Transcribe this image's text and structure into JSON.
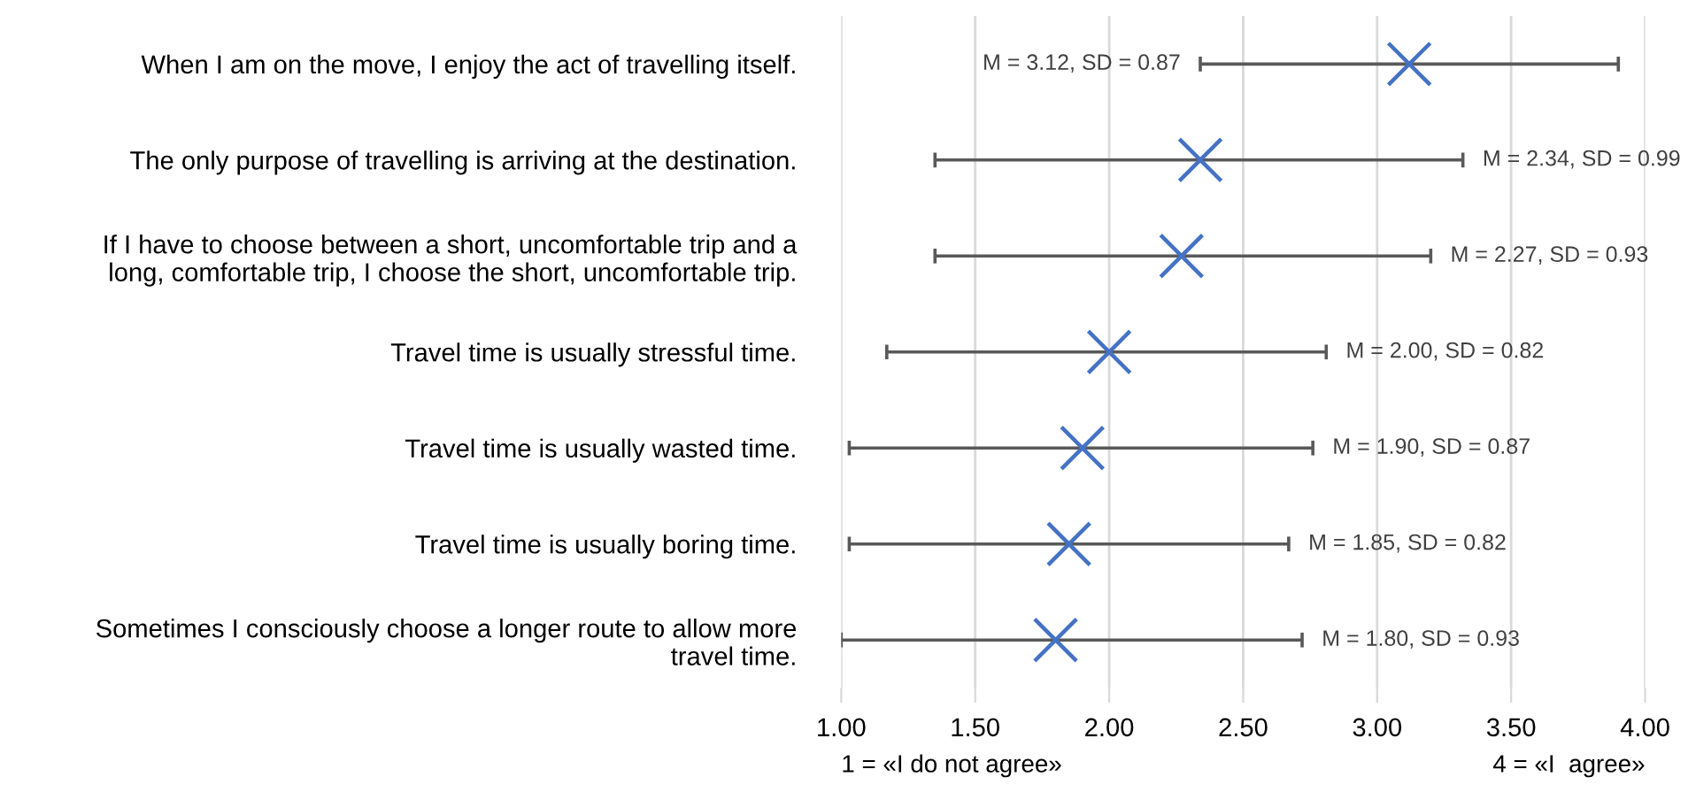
{
  "chart_data": {
    "type": "scatter",
    "orientation": "horizontal",
    "categories": [
      "When I am on the move, I enjoy the act of travelling itself.",
      "The only purpose of travelling is arriving at the destination.",
      "If I have to choose between a short, uncomfortable trip and a\nlong, comfortable trip, I choose the short, uncomfortable trip.",
      "Travel time is usually stressful time.",
      "Travel time is usually wasted time.",
      "Travel time is usually boring time.",
      "Sometimes I consciously choose a longer route to allow more\ntravel time."
    ],
    "values": [
      3.12,
      2.34,
      2.27,
      2.0,
      1.9,
      1.85,
      1.8
    ],
    "errors": [
      [
        2.34,
        3.9
      ],
      [
        1.35,
        3.32
      ],
      [
        1.35,
        3.2
      ],
      [
        1.17,
        2.81
      ],
      [
        1.03,
        2.76
      ],
      [
        1.03,
        2.67
      ],
      [
        1.0,
        2.72
      ]
    ],
    "color": "#4472c4",
    "marker": "cross",
    "xlim": [
      1.0,
      4.0
    ],
    "xticks": [
      {
        "value": 1.0,
        "label": "1.00"
      },
      {
        "value": 1.5,
        "label": "1.50"
      },
      {
        "value": 2.0,
        "label": "2.00"
      },
      {
        "value": 2.5,
        "label": "2.50"
      },
      {
        "value": 3.0,
        "label": "3.00"
      },
      {
        "value": 3.5,
        "label": "3.50"
      },
      {
        "value": 4.0,
        "label": "4.00"
      }
    ],
    "grid": "x",
    "annotations": [
      {
        "text": "M = 3.12, SD = 0.87",
        "x": 2.34,
        "y": "When I am on the move, I enjoy the act of travelling itself."
      },
      {
        "text": "M = 2.34, SD = 0.99",
        "x": 3.32,
        "y": "The only purpose of travelling is arriving at the destination."
      },
      {
        "text": "M = 2.27, SD = 0.93",
        "x": 3.2,
        "y": "If I have to choose between a short, uncomfortable trip and a\nlong, comfortable trip, I choose the short, uncomfortable trip."
      },
      {
        "text": "M = 2.00, SD = 0.82",
        "x": 2.81,
        "y": "Travel time is usually stressful time."
      },
      {
        "text": "M = 1.90, SD = 0.87",
        "x": 2.76,
        "y": "Travel time is usually wasted time."
      },
      {
        "text": "M = 1.85, SD = 0.82",
        "x": 2.67,
        "y": "Travel time is usually boring time."
      },
      {
        "text": "M = 1.80, SD = 0.93",
        "x": 2.72,
        "y": "Sometimes I consciously choose a longer route to allow more\ntravel time."
      },
      "1 = «I do not agree»",
      "4 = «I  agree»"
    ]
  }
}
